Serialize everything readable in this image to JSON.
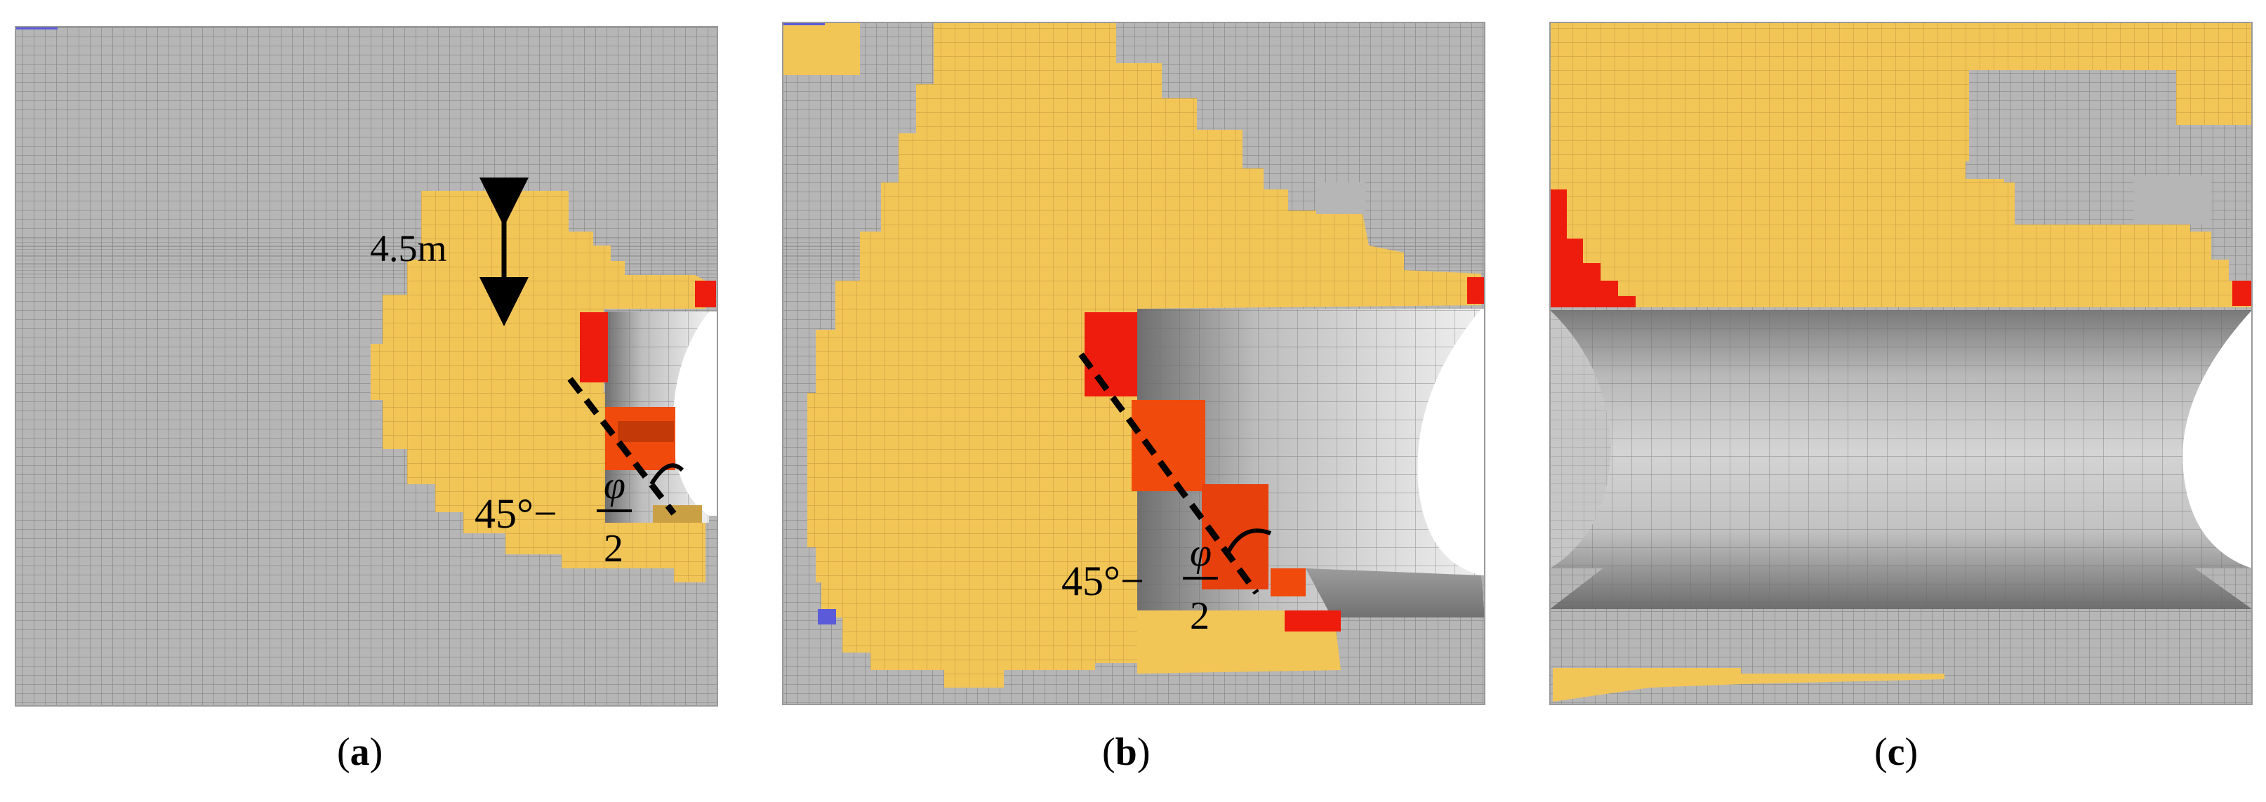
{
  "figure": {
    "panels": [
      {
        "id": "a",
        "caption_open": "(",
        "caption_letter": "a",
        "caption_close": ")",
        "annotations": {
          "depth_label": "4.5m",
          "angle_prefix": "45°−",
          "angle_numerator": "φ",
          "angle_denominator": "2"
        }
      },
      {
        "id": "b",
        "caption_open": "(",
        "caption_letter": "b",
        "caption_close": ")",
        "annotations": {
          "angle_prefix": "45°−",
          "angle_numerator": "φ",
          "angle_denominator": "2"
        }
      },
      {
        "id": "c",
        "caption_open": "(",
        "caption_letter": "c",
        "caption_close": ")"
      }
    ],
    "colors": {
      "mesh_gray": "#b4b4b4",
      "mesh_line": "#8e8e8e",
      "plastic_yellow": "#f2c557",
      "failure_red": "#ee1c0c",
      "failure_orange_red": "#f04a0c",
      "tunnel_dark": "#7d7d7d",
      "tunnel_light": "#e6e6e6",
      "blue_marker": "#5b5bd9",
      "annotation_black": "#000000"
    }
  }
}
